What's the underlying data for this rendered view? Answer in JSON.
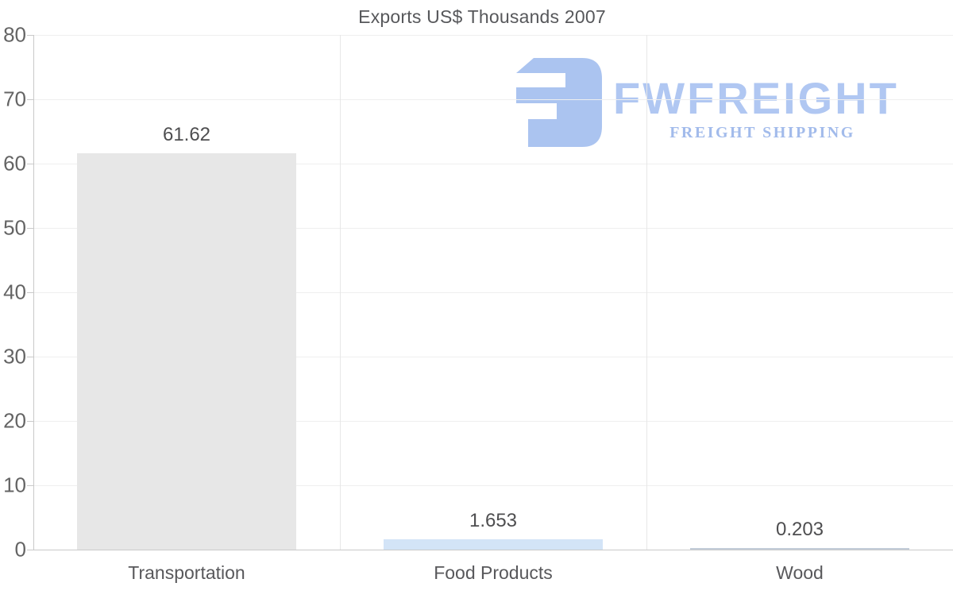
{
  "title": "Exports US$ Thousands 2007",
  "watermark": {
    "brand": "FWFREIGHT",
    "tagline": "FREIGHT SHIPPING",
    "icon": "fwfreight-logo-icon",
    "color_icon": "#abc4f0",
    "color_brand": "#b0c7f2",
    "color_tagline": "#a2bbeb"
  },
  "chart_data": {
    "type": "bar",
    "title": "Exports US$ Thousands 2007",
    "categories": [
      "Transportation",
      "Food Products",
      "Wood"
    ],
    "values": [
      61.62,
      1.653,
      0.203
    ],
    "value_labels": [
      "61.62",
      "1.653",
      "0.203"
    ],
    "series_name": "Exports US$ Thousands 2007",
    "bar_colors": [
      "#e7e7e7",
      "#d3e4f7",
      "#c3cdd9"
    ],
    "xlabel": "",
    "ylabel": "",
    "ylim": [
      0,
      80
    ],
    "yticks": [
      0,
      10,
      20,
      30,
      40,
      50,
      60,
      70,
      80
    ],
    "grid": true,
    "legend": "none",
    "axis_color": "#c9c9c9",
    "gridline_color": "#efefef",
    "separator_color": "#e7e7e7"
  }
}
